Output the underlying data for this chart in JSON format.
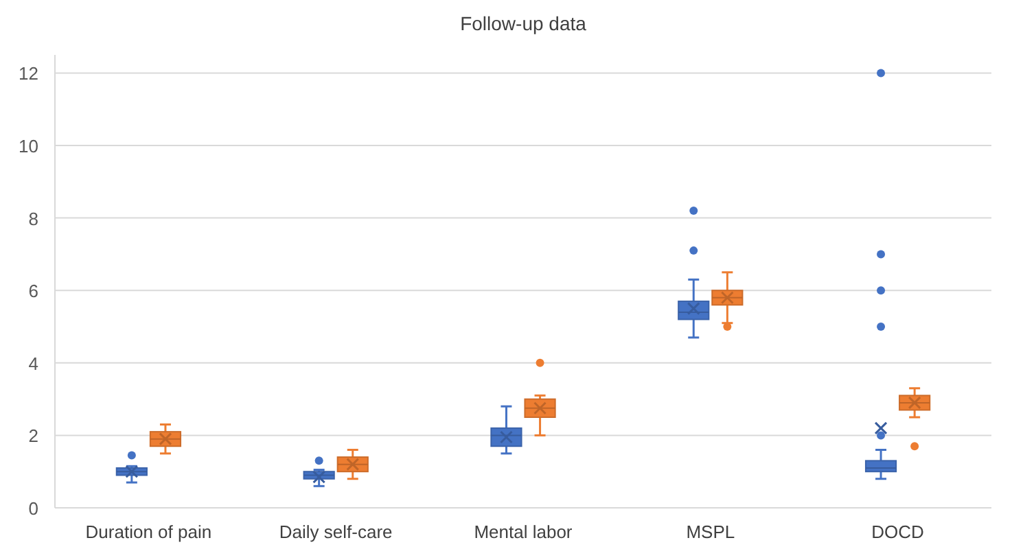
{
  "chart_data": {
    "type": "box",
    "title": "Follow-up data",
    "categories": [
      "Duration of pain",
      "Daily self-care",
      "Mental labor",
      "MSPL",
      "DOCD"
    ],
    "ylim": [
      0,
      12.5
    ],
    "yticks": [
      0,
      2,
      4,
      6,
      8,
      10,
      12
    ],
    "grid": "y",
    "marker": "circle",
    "series": [
      {
        "color": "#4472c4",
        "boxes": [
          {
            "low": 0.7,
            "q1": 0.9,
            "median": 1.0,
            "q3": 1.1,
            "high": 1.15,
            "mean": 1.0,
            "outliers": [
              1.45
            ]
          },
          {
            "low": 0.6,
            "q1": 0.8,
            "median": 0.9,
            "q3": 1.0,
            "high": 1.05,
            "mean": 0.85,
            "outliers": [
              1.3
            ]
          },
          {
            "low": 1.5,
            "q1": 1.7,
            "median": 2.0,
            "q3": 2.2,
            "high": 2.8,
            "mean": 1.95
          },
          {
            "low": 4.7,
            "q1": 5.2,
            "median": 5.4,
            "q3": 5.7,
            "high": 6.3,
            "mean": 5.5,
            "outliers": [
              7.1,
              8.2
            ]
          },
          {
            "low": 0.8,
            "q1": 1.0,
            "median": 1.1,
            "q3": 1.3,
            "high": 1.6,
            "mean": 2.2,
            "outliers": [
              2.0,
              5.0,
              6.0,
              7.0,
              12.0
            ]
          }
        ]
      },
      {
        "color": "#ed7d31",
        "boxes": [
          {
            "low": 1.5,
            "q1": 1.7,
            "median": 1.9,
            "q3": 2.1,
            "high": 2.3,
            "mean": 1.9
          },
          {
            "low": 0.8,
            "q1": 1.0,
            "median": 1.2,
            "q3": 1.4,
            "high": 1.6,
            "mean": 1.2
          },
          {
            "low": 2.0,
            "q1": 2.5,
            "median": 2.75,
            "q3": 3.0,
            "high": 3.1,
            "mean": 2.75,
            "outliers": [
              4.0
            ]
          },
          {
            "low": 5.1,
            "q1": 5.6,
            "median": 5.8,
            "q3": 6.0,
            "high": 6.5,
            "mean": 5.8,
            "outliers": [
              5.0
            ]
          },
          {
            "low": 2.5,
            "q1": 2.7,
            "median": 2.9,
            "q3": 3.1,
            "high": 3.3,
            "mean": 2.9,
            "outliers": [
              1.7
            ]
          }
        ]
      }
    ]
  }
}
